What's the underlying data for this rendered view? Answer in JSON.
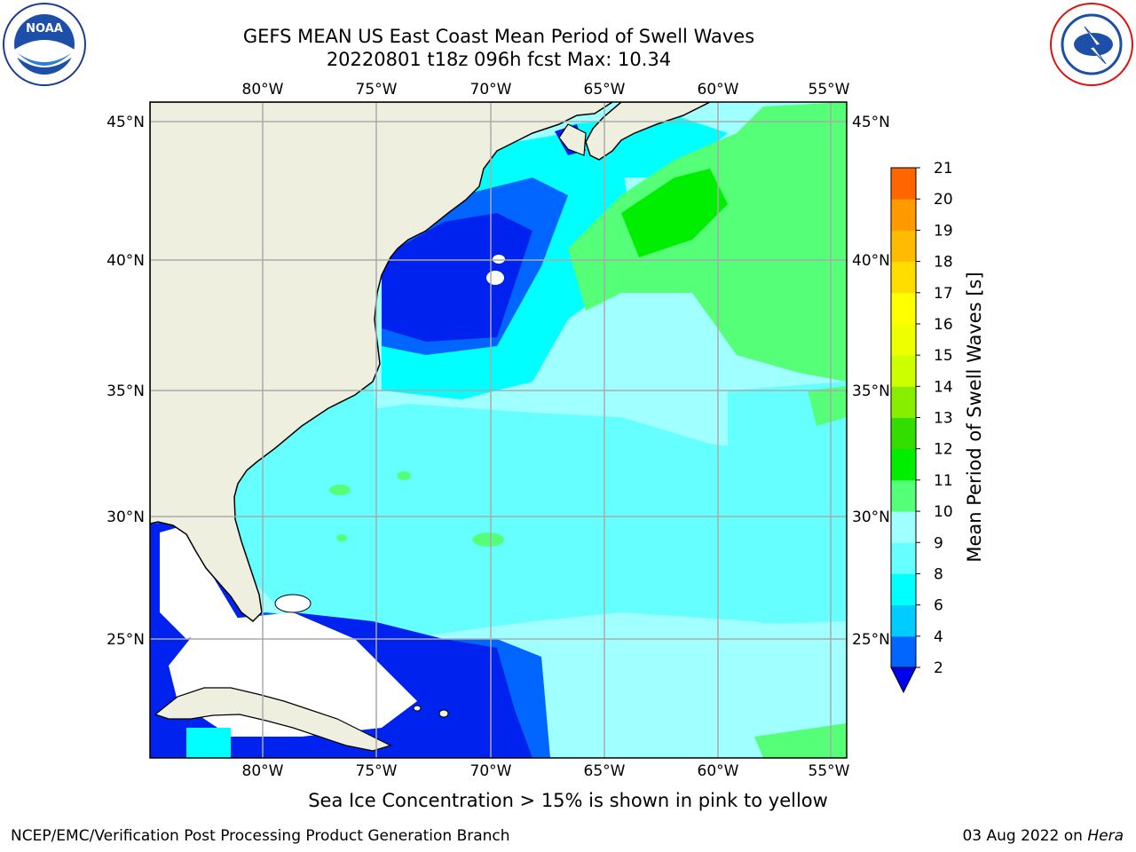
{
  "title_line1": "GEFS MEAN US East Coast Mean Period of Swell Waves",
  "title_line2": "20220801 t18z 096h fcst   Max: 10.34",
  "footer_note": "Sea Ice Concentration > 15% is shown in pink to yellow",
  "credit": "NCEP/EMC/Verification Post Processing Product Generation Branch",
  "date_text": "03 Aug 2022 on ",
  "host": "Hera",
  "lon_labels": [
    "80°W",
    "75°W",
    "70°W",
    "65°W",
    "60°W",
    "55°W"
  ],
  "lat_labels": [
    "45°N",
    "40°N",
    "35°N",
    "30°N",
    "25°N"
  ],
  "colorbar": {
    "label": "Mean Period of Swell Waves [s]",
    "ticks": [
      "2",
      "4",
      "6",
      "8",
      "9",
      "10",
      "11",
      "12",
      "13",
      "14",
      "15",
      "16",
      "17",
      "18",
      "19",
      "20",
      "21"
    ],
    "colors": [
      "#0066ff",
      "#00ccff",
      "#00ffff",
      "#66ffff",
      "#a0ffff",
      "#55ff77",
      "#00ee00",
      "#33dd00",
      "#88ee00",
      "#ccff00",
      "#eeff00",
      "#ffff00",
      "#ffdd00",
      "#ffbb00",
      "#ff9900",
      "#ff6600",
      "#ff2200",
      "#ff0000"
    ],
    "under_color": "#0000ee"
  },
  "palette": {
    "land": "#efefdf",
    "ocean_base": "#a0ffff",
    "deep_blue": "#0022ee",
    "blue": "#0066ff",
    "cyan": "#00ffff",
    "light_cyan": "#66ffff",
    "green": "#55ff77",
    "bright_green": "#00ee00"
  },
  "logos": {
    "left_icon": "noaa-logo-icon",
    "right_icon": "nws-logo-icon"
  }
}
